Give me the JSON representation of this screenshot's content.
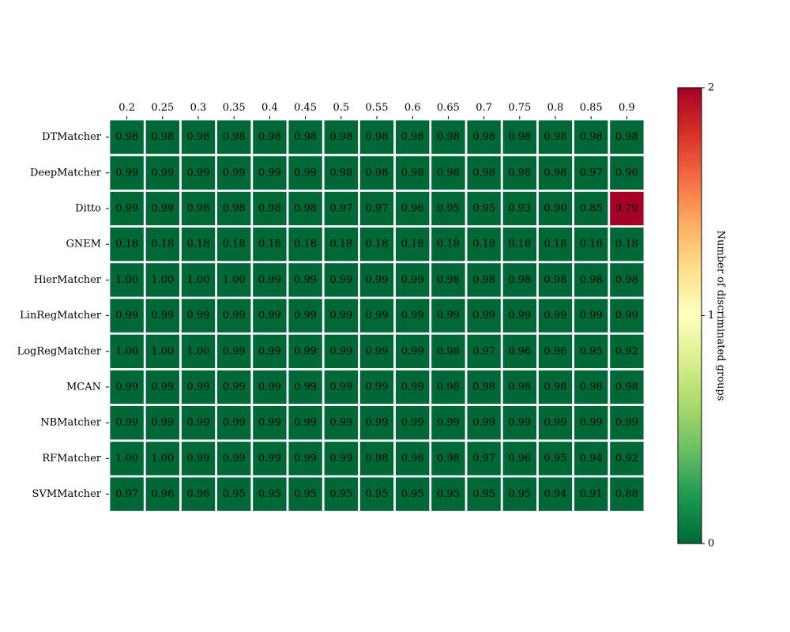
{
  "chart_data": {
    "type": "heatmap",
    "title": "",
    "xlabel": "",
    "ylabel": "",
    "x_tick_position": "top",
    "x": [
      "0.2",
      "0.25",
      "0.3",
      "0.35",
      "0.4",
      "0.45",
      "0.5",
      "0.55",
      "0.6",
      "0.65",
      "0.7",
      "0.75",
      "0.8",
      "0.85",
      "0.9"
    ],
    "y": [
      "DTMatcher",
      "DeepMatcher",
      "Ditto",
      "GNEM",
      "HierMatcher",
      "LinRegMatcher",
      "LogRegMatcher",
      "MCAN",
      "NBMatcher",
      "RFMatcher",
      "SVMMatcher"
    ],
    "cell_labels": [
      [
        "0.98",
        "0.98",
        "0.98",
        "0.98",
        "0.98",
        "0.98",
        "0.98",
        "0.98",
        "0.98",
        "0.98",
        "0.98",
        "0.98",
        "0.98",
        "0.98",
        "0.98"
      ],
      [
        "0.99",
        "0.99",
        "0.99",
        "0.99",
        "0.99",
        "0.99",
        "0.98",
        "0.98",
        "0.98",
        "0.98",
        "0.98",
        "0.98",
        "0.98",
        "0.97",
        "0.96"
      ],
      [
        "0.99",
        "0.99",
        "0.98",
        "0.98",
        "0.98",
        "0.98",
        "0.97",
        "0.97",
        "0.96",
        "0.95",
        "0.95",
        "0.93",
        "0.90",
        "0.85",
        "0.79"
      ],
      [
        "0.18",
        "0.18",
        "0.18",
        "0.18",
        "0.18",
        "0.18",
        "0.18",
        "0.18",
        "0.18",
        "0.18",
        "0.18",
        "0.18",
        "0.18",
        "0.18",
        "0.18"
      ],
      [
        "1.00",
        "1.00",
        "1.00",
        "1.00",
        "0.99",
        "0.99",
        "0.99",
        "0.99",
        "0.99",
        "0.98",
        "0.98",
        "0.98",
        "0.98",
        "0.98",
        "0.98"
      ],
      [
        "0.99",
        "0.99",
        "0.99",
        "0.99",
        "0.99",
        "0.99",
        "0.99",
        "0.99",
        "0.99",
        "0.99",
        "0.99",
        "0.99",
        "0.99",
        "0.99",
        "0.99"
      ],
      [
        "1.00",
        "1.00",
        "1.00",
        "0.99",
        "0.99",
        "0.99",
        "0.99",
        "0.99",
        "0.99",
        "0.98",
        "0.97",
        "0.96",
        "0.96",
        "0.95",
        "0.92"
      ],
      [
        "0.99",
        "0.99",
        "0.99",
        "0.99",
        "0.99",
        "0.99",
        "0.99",
        "0.99",
        "0.99",
        "0.98",
        "0.98",
        "0.98",
        "0.98",
        "0.98",
        "0.98"
      ],
      [
        "0.99",
        "0.99",
        "0.99",
        "0.99",
        "0.99",
        "0.99",
        "0.99",
        "0.99",
        "0.99",
        "0.99",
        "0.99",
        "0.99",
        "0.99",
        "0.99",
        "0.99"
      ],
      [
        "1.00",
        "1.00",
        "0.99",
        "0.99",
        "0.99",
        "0.99",
        "0.99",
        "0.98",
        "0.98",
        "0.98",
        "0.97",
        "0.96",
        "0.95",
        "0.94",
        "0.92"
      ],
      [
        "0.97",
        "0.96",
        "0.96",
        "0.95",
        "0.95",
        "0.95",
        "0.95",
        "0.95",
        "0.95",
        "0.95",
        "0.95",
        "0.95",
        "0.94",
        "0.91",
        "0.88"
      ]
    ],
    "color_values": [
      [
        0,
        0,
        0,
        0,
        0,
        0,
        0,
        0,
        0,
        0,
        0,
        0,
        0,
        0,
        0
      ],
      [
        0,
        0,
        0,
        0,
        0,
        0,
        0,
        0,
        0,
        0,
        0,
        0,
        0,
        0,
        0
      ],
      [
        0,
        0,
        0,
        0,
        0,
        0,
        0,
        0,
        0,
        0,
        0,
        0,
        0,
        0,
        2
      ],
      [
        0,
        0,
        0,
        0,
        0,
        0,
        0,
        0,
        0,
        0,
        0,
        0,
        0,
        0,
        0
      ],
      [
        0,
        0,
        0,
        0,
        0,
        0,
        0,
        0,
        0,
        0,
        0,
        0,
        0,
        0,
        0
      ],
      [
        0,
        0,
        0,
        0,
        0,
        0,
        0,
        0,
        0,
        0,
        0,
        0,
        0,
        0,
        0
      ],
      [
        0,
        0,
        0,
        0,
        0,
        0,
        0,
        0,
        0,
        0,
        0,
        0,
        0,
        0,
        0
      ],
      [
        0,
        0,
        0,
        0,
        0,
        0,
        0,
        0,
        0,
        0,
        0,
        0,
        0,
        0,
        0
      ],
      [
        0,
        0,
        0,
        0,
        0,
        0,
        0,
        0,
        0,
        0,
        0,
        0,
        0,
        0,
        0
      ],
      [
        0,
        0,
        0,
        0,
        0,
        0,
        0,
        0,
        0,
        0,
        0,
        0,
        0,
        0,
        0
      ],
      [
        0,
        0,
        0,
        0,
        0,
        0,
        0,
        0,
        0,
        0,
        0,
        0,
        0,
        0,
        0
      ]
    ],
    "colorbar": {
      "label": "Number of discriminated groups",
      "range": [
        0,
        2
      ],
      "ticks": [
        "0",
        "1",
        "2"
      ],
      "colormap": "RdYlGn (reversed)",
      "stops": [
        "#006837",
        "#1a9850",
        "#66bd63",
        "#a6d96a",
        "#d9ef8b",
        "#ffffbf",
        "#fee08b",
        "#fdae61",
        "#f46d43",
        "#d73027",
        "#a50026"
      ]
    },
    "grid": false,
    "cell_border_color": "#ffffff"
  }
}
